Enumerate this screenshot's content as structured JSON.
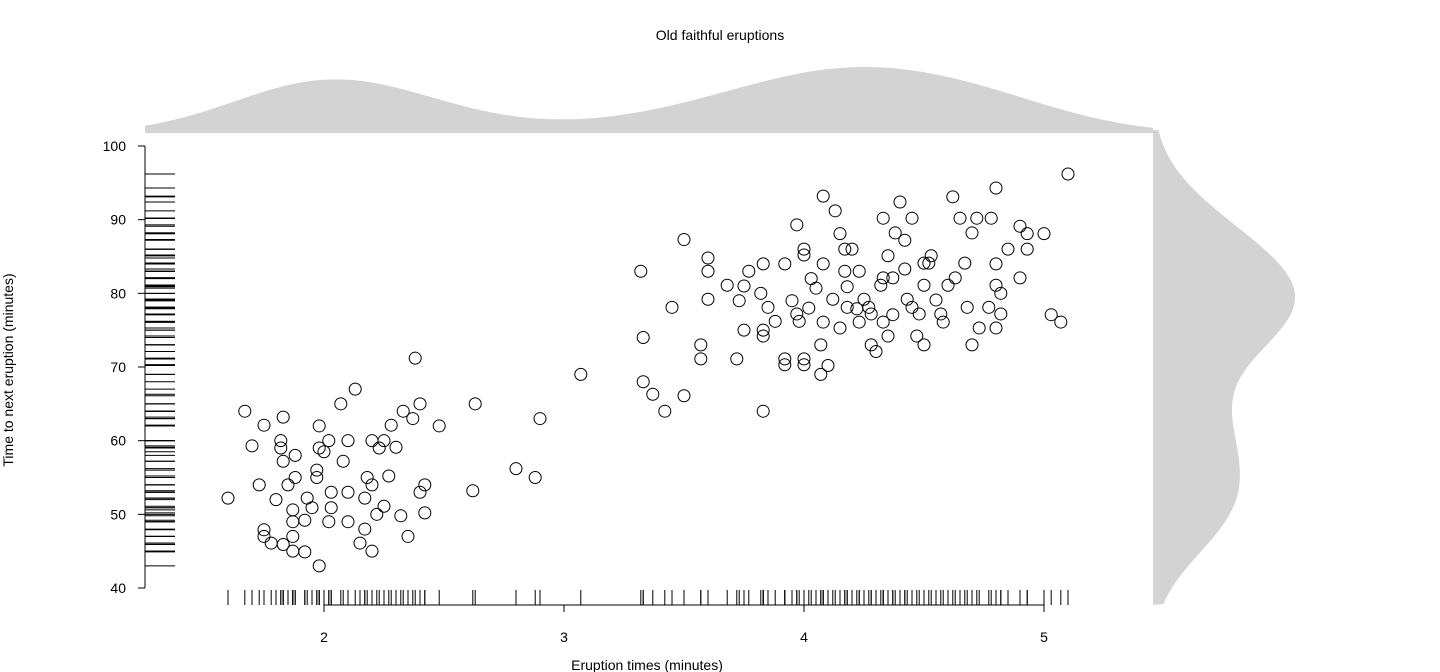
{
  "chart_data": {
    "type": "scatter",
    "title": "Old faithful eruptions",
    "xlabel": "Eruption times (minutes)",
    "ylabel": "Time to next eruption (minutes)",
    "xlim": [
      1.26,
      5.46
    ],
    "ylim": [
      40,
      100
    ],
    "xticks": [
      2,
      3,
      4,
      5
    ],
    "yticks": [
      40,
      50,
      60,
      70,
      80,
      90,
      100
    ],
    "grid": false,
    "marginal_density_color": "#d3d3d3",
    "marginals": [
      "top density of x",
      "right density of y",
      "x rug",
      "y rug"
    ],
    "points": [
      [
        1.6,
        52.2
      ],
      [
        1.67,
        64
      ],
      [
        1.7,
        59.3
      ],
      [
        1.73,
        54
      ],
      [
        1.75,
        62.1
      ],
      [
        1.75,
        47.9
      ],
      [
        1.75,
        47
      ],
      [
        1.78,
        46.1
      ],
      [
        1.8,
        52
      ],
      [
        1.82,
        60
      ],
      [
        1.83,
        63.2
      ],
      [
        1.82,
        59
      ],
      [
        1.83,
        57.2
      ],
      [
        1.83,
        45.9
      ],
      [
        1.85,
        54
      ],
      [
        1.87,
        50.6
      ],
      [
        1.87,
        49
      ],
      [
        1.87,
        47
      ],
      [
        1.87,
        45
      ],
      [
        1.88,
        55
      ],
      [
        1.88,
        58
      ],
      [
        1.92,
        44.9
      ],
      [
        1.92,
        49.2
      ],
      [
        1.93,
        52.2
      ],
      [
        1.95,
        50.9
      ],
      [
        1.97,
        56
      ],
      [
        1.97,
        55
      ],
      [
        1.98,
        62
      ],
      [
        1.98,
        59
      ],
      [
        1.98,
        43
      ],
      [
        2,
        58.5
      ],
      [
        2.02,
        60
      ],
      [
        2.02,
        49
      ],
      [
        2.03,
        50.9
      ],
      [
        2.03,
        53
      ],
      [
        2.07,
        65
      ],
      [
        2.08,
        57.2
      ],
      [
        2.1,
        60
      ],
      [
        2.1,
        53
      ],
      [
        2.1,
        49
      ],
      [
        2.13,
        67
      ],
      [
        2.15,
        46.1
      ],
      [
        2.17,
        52.2
      ],
      [
        2.17,
        48
      ],
      [
        2.18,
        55
      ],
      [
        2.2,
        60
      ],
      [
        2.2,
        54
      ],
      [
        2.2,
        45
      ],
      [
        2.22,
        50
      ],
      [
        2.23,
        59
      ],
      [
        2.25,
        60
      ],
      [
        2.25,
        51.1
      ],
      [
        2.27,
        55.2
      ],
      [
        2.28,
        62.1
      ],
      [
        2.3,
        59.1
      ],
      [
        2.32,
        49.8
      ],
      [
        2.33,
        64
      ],
      [
        2.35,
        47
      ],
      [
        2.37,
        63
      ],
      [
        2.38,
        71.2
      ],
      [
        2.4,
        53
      ],
      [
        2.4,
        65
      ],
      [
        2.42,
        54
      ],
      [
        2.42,
        50.2
      ],
      [
        2.48,
        62
      ],
      [
        2.62,
        53.2
      ],
      [
        2.63,
        65
      ],
      [
        2.8,
        56.2
      ],
      [
        2.88,
        55
      ],
      [
        2.9,
        63
      ],
      [
        3.07,
        69
      ],
      [
        3.32,
        83
      ],
      [
        3.33,
        74
      ],
      [
        3.33,
        68
      ],
      [
        3.37,
        66.3
      ],
      [
        3.42,
        64
      ],
      [
        3.45,
        78.1
      ],
      [
        3.5,
        87.3
      ],
      [
        3.5,
        66.1
      ],
      [
        3.57,
        73
      ],
      [
        3.57,
        71.1
      ],
      [
        3.6,
        83
      ],
      [
        3.6,
        79.2
      ],
      [
        3.6,
        84.8
      ],
      [
        3.68,
        81.1
      ],
      [
        3.72,
        71.1
      ],
      [
        3.73,
        79
      ],
      [
        3.75,
        75
      ],
      [
        3.75,
        81
      ],
      [
        3.77,
        83
      ],
      [
        3.82,
        80
      ],
      [
        3.83,
        84
      ],
      [
        3.83,
        64
      ],
      [
        3.83,
        75
      ],
      [
        3.83,
        74.2
      ],
      [
        3.85,
        78.1
      ],
      [
        3.88,
        76.2
      ],
      [
        3.92,
        84
      ],
      [
        3.92,
        71.1
      ],
      [
        3.92,
        70.3
      ],
      [
        3.95,
        79
      ],
      [
        3.97,
        89.3
      ],
      [
        3.97,
        77.2
      ],
      [
        3.98,
        76.2
      ],
      [
        4,
        86
      ],
      [
        4,
        85.2
      ],
      [
        4,
        71.1
      ],
      [
        4,
        70.3
      ],
      [
        4.02,
        78
      ],
      [
        4.03,
        82
      ],
      [
        4.05,
        80.7
      ],
      [
        4.07,
        73
      ],
      [
        4.07,
        69
      ],
      [
        4.08,
        93.2
      ],
      [
        4.08,
        84
      ],
      [
        4.08,
        76.1
      ],
      [
        4.1,
        70.2
      ],
      [
        4.12,
        79.2
      ],
      [
        4.13,
        91.2
      ],
      [
        4.15,
        75.3
      ],
      [
        4.15,
        88.1
      ],
      [
        4.17,
        86
      ],
      [
        4.17,
        83
      ],
      [
        4.18,
        80.9
      ],
      [
        4.18,
        78.1
      ],
      [
        4.2,
        86
      ],
      [
        4.22,
        77.9
      ],
      [
        4.23,
        83
      ],
      [
        4.23,
        76.1
      ],
      [
        4.25,
        79.2
      ],
      [
        4.27,
        78.1
      ],
      [
        4.28,
        73
      ],
      [
        4.28,
        77.2
      ],
      [
        4.3,
        72.1
      ],
      [
        4.32,
        81.1
      ],
      [
        4.33,
        90.2
      ],
      [
        4.33,
        82.1
      ],
      [
        4.33,
        76.1
      ],
      [
        4.35,
        85.1
      ],
      [
        4.35,
        74.2
      ],
      [
        4.37,
        82.1
      ],
      [
        4.37,
        77.1
      ],
      [
        4.38,
        88.2
      ],
      [
        4.4,
        92.4
      ],
      [
        4.42,
        83.3
      ],
      [
        4.42,
        87.2
      ],
      [
        4.43,
        79.2
      ],
      [
        4.45,
        78.1
      ],
      [
        4.45,
        90.2
      ],
      [
        4.47,
        74.2
      ],
      [
        4.48,
        77.2
      ],
      [
        4.5,
        84.1
      ],
      [
        4.5,
        81.1
      ],
      [
        4.5,
        73
      ],
      [
        4.52,
        84.1
      ],
      [
        4.53,
        85.1
      ],
      [
        4.55,
        79.1
      ],
      [
        4.57,
        77.2
      ],
      [
        4.58,
        76.1
      ],
      [
        4.6,
        81.1
      ],
      [
        4.62,
        93.1
      ],
      [
        4.63,
        82.1
      ],
      [
        4.65,
        90.2
      ],
      [
        4.67,
        84.1
      ],
      [
        4.68,
        78.1
      ],
      [
        4.7,
        88.2
      ],
      [
        4.7,
        73
      ],
      [
        4.72,
        90.2
      ],
      [
        4.73,
        75.3
      ],
      [
        4.77,
        78.1
      ],
      [
        4.78,
        90.2
      ],
      [
        4.8,
        94.3
      ],
      [
        4.8,
        84
      ],
      [
        4.8,
        81.1
      ],
      [
        4.8,
        75.3
      ],
      [
        4.82,
        77.2
      ],
      [
        4.82,
        80
      ],
      [
        4.85,
        86
      ],
      [
        4.9,
        89.1
      ],
      [
        4.9,
        82.1
      ],
      [
        4.93,
        86
      ],
      [
        4.93,
        88.1
      ],
      [
        5,
        88.1
      ],
      [
        5.03,
        77.1
      ],
      [
        5.07,
        76.1
      ],
      [
        5.1,
        96.2
      ]
    ]
  }
}
